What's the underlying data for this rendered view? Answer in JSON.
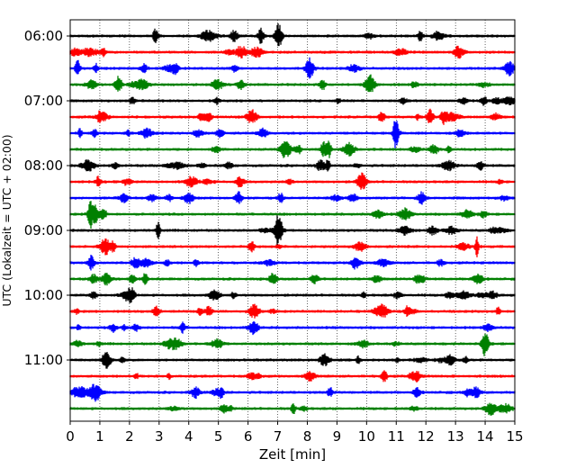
{
  "chart_data": {
    "type": "line",
    "title": "",
    "xlabel": "Zeit  [min]",
    "ylabel": "UTC (Lokalzeit = UTC + 02:00)",
    "xlim": [
      0,
      15
    ],
    "x_ticks": [
      "0",
      "1",
      "2",
      "3",
      "4",
      "5",
      "6",
      "7",
      "8",
      "9",
      "10",
      "11",
      "12",
      "13",
      "14",
      "15"
    ],
    "y_tick_labels": [
      "06:00",
      "07:00",
      "08:00",
      "09:00",
      "10:00",
      "11:00"
    ],
    "trace_interval_minutes": 15,
    "trace_start": "06:00",
    "trace_count": 24,
    "trace_color_cycle": [
      "#000000",
      "#ff0000",
      "#0000ff",
      "#008000"
    ],
    "grid": "vertical dotted lines at each minute"
  }
}
